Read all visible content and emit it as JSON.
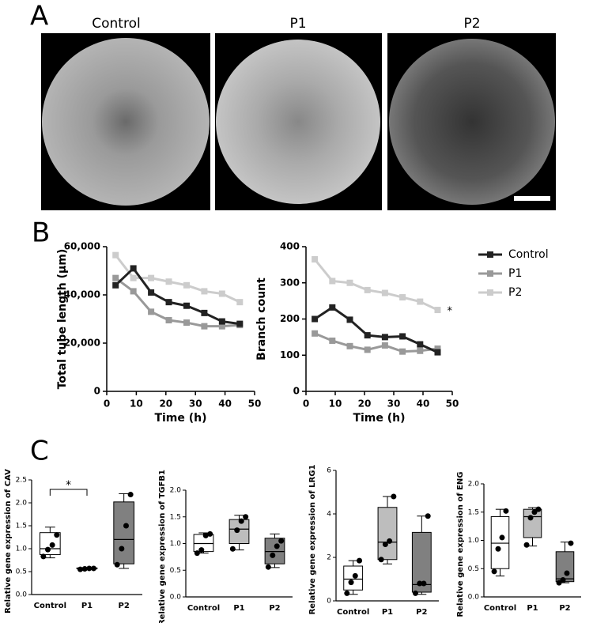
{
  "panel_a": {
    "label": "A",
    "titles": [
      "Control",
      "P1",
      "P2"
    ]
  },
  "panel_b_label": "B",
  "panel_c_label": "C",
  "chart_data": [
    {
      "type": "line",
      "xlabel": "Time (h)",
      "ylabel": "Total tube length (µm)",
      "x": [
        3,
        9,
        15,
        21,
        27,
        33,
        39,
        45
      ],
      "xlim": [
        0,
        50
      ],
      "xticks": [
        0,
        10,
        20,
        30,
        40,
        50
      ],
      "ylim": [
        0,
        60000
      ],
      "yticks": [
        0,
        {
          "value": 20000,
          "label": "20,000"
        },
        {
          "value": 40000,
          "label": "40,000"
        },
        {
          "value": 60000,
          "label": "60,000"
        }
      ],
      "series": [
        {
          "color": "#222222",
          "values": [
            44000,
            51000,
            41000,
            37000,
            35500,
            32500,
            29000,
            28000
          ]
        },
        {
          "color": "#999999",
          "values": [
            47000,
            41500,
            33000,
            29500,
            28500,
            27000,
            27000,
            27500
          ]
        },
        {
          "color": "#cccccc",
          "values": [
            56500,
            47000,
            47000,
            45500,
            44000,
            41500,
            40500,
            37000
          ]
        }
      ]
    },
    {
      "type": "line",
      "xlabel": "Time (h)",
      "ylabel": "Branch count",
      "x": [
        3,
        9,
        15,
        21,
        27,
        33,
        39,
        45
      ],
      "xlim": [
        0,
        50
      ],
      "xticks": [
        0,
        10,
        20,
        30,
        40,
        50
      ],
      "ylim": [
        0,
        400
      ],
      "yticks": [
        0,
        100,
        200,
        300,
        400
      ],
      "annotation": "*",
      "series": [
        {
          "name": "Control",
          "color": "#222222",
          "values": [
            200,
            232,
            198,
            155,
            150,
            152,
            130,
            108
          ]
        },
        {
          "name": "P1",
          "color": "#999999",
          "values": [
            160,
            140,
            125,
            115,
            127,
            110,
            112,
            118
          ]
        },
        {
          "name": "P2",
          "color": "#cccccc",
          "values": [
            365,
            305,
            300,
            280,
            272,
            260,
            248,
            225
          ]
        }
      ]
    },
    {
      "type": "box",
      "ylabel": "Relative gene expression of CAV",
      "categories": [
        "Control",
        "P1",
        "P2"
      ],
      "colors": [
        "#ffffff",
        "#bdbdbd",
        "#808080"
      ],
      "ylim": [
        0,
        2.5
      ],
      "yticks": [
        {
          "value": 0,
          "label": "0.0"
        },
        0.5,
        {
          "value": 1,
          "label": "1.0"
        },
        1.5,
        {
          "value": 2,
          "label": "2.0"
        },
        2.5
      ],
      "annotation": "*",
      "boxes": [
        {
          "min": 0.8,
          "q1": 0.87,
          "median": 1.0,
          "q3": 1.35,
          "max": 1.47,
          "points": [
            0.83,
            0.98,
            1.08,
            1.3
          ]
        },
        {
          "min": 0.55,
          "q1": 0.56,
          "median": 0.57,
          "q3": 0.58,
          "max": 0.58,
          "points": [
            0.55,
            0.56,
            0.57,
            0.57
          ]
        },
        {
          "min": 0.57,
          "q1": 0.67,
          "median": 1.2,
          "q3": 2.02,
          "max": 2.2,
          "points": [
            0.65,
            1.0,
            1.5,
            2.18
          ]
        }
      ]
    },
    {
      "type": "box",
      "ylabel": "Relative gene expression of TGFB1",
      "categories": [
        "Control",
        "P1",
        "P2"
      ],
      "colors": [
        "#ffffff",
        "#bdbdbd",
        "#808080"
      ],
      "ylim": [
        0,
        2
      ],
      "yticks": [
        {
          "value": 0,
          "label": "0.0"
        },
        0.5,
        {
          "value": 1,
          "label": "1.0"
        },
        1.5,
        {
          "value": 2,
          "label": "2.0"
        }
      ],
      "boxes": [
        {
          "min": 0.82,
          "q1": 0.85,
          "median": 1.0,
          "q3": 1.17,
          "max": 1.2,
          "points": [
            0.82,
            0.88,
            1.15,
            1.18
          ]
        },
        {
          "min": 0.88,
          "q1": 1.0,
          "median": 1.27,
          "q3": 1.45,
          "max": 1.53,
          "points": [
            0.9,
            1.25,
            1.42,
            1.5
          ]
        },
        {
          "min": 0.55,
          "q1": 0.62,
          "median": 0.85,
          "q3": 1.1,
          "max": 1.18,
          "points": [
            0.56,
            0.78,
            0.95,
            1.05
          ]
        }
      ]
    },
    {
      "type": "box",
      "ylabel": "Relative gene expression of LRG1",
      "categories": [
        "Control",
        "P1",
        "P2"
      ],
      "colors": [
        "#ffffff",
        "#bdbdbd",
        "#808080"
      ],
      "ylim": [
        0,
        6
      ],
      "yticks": [
        0,
        2,
        4,
        6
      ],
      "boxes": [
        {
          "min": 0.3,
          "q1": 0.5,
          "median": 1.0,
          "q3": 1.6,
          "max": 1.85,
          "points": [
            0.35,
            0.85,
            1.15,
            1.85
          ]
        },
        {
          "min": 1.7,
          "q1": 1.9,
          "median": 2.7,
          "q3": 4.3,
          "max": 4.8,
          "points": [
            1.9,
            2.6,
            2.75,
            4.8
          ]
        },
        {
          "min": 0.3,
          "q1": 0.4,
          "median": 0.75,
          "q3": 3.15,
          "max": 3.9,
          "points": [
            0.35,
            0.8,
            0.8,
            3.9
          ]
        }
      ]
    },
    {
      "type": "box",
      "ylabel": "Relative gene expression of ENG",
      "categories": [
        "Control",
        "P1",
        "P2"
      ],
      "colors": [
        "#ffffff",
        "#bdbdbd",
        "#808080"
      ],
      "ylim": [
        0,
        2
      ],
      "yticks": [
        {
          "value": 0,
          "label": "0.0"
        },
        0.5,
        {
          "value": 1,
          "label": "1.0"
        },
        1.5,
        {
          "value": 2,
          "label": "2.0"
        }
      ],
      "boxes": [
        {
          "min": 0.37,
          "q1": 0.5,
          "median": 0.95,
          "q3": 1.42,
          "max": 1.55,
          "points": [
            0.45,
            0.85,
            1.05,
            1.52
          ]
        },
        {
          "min": 0.9,
          "q1": 1.05,
          "median": 1.42,
          "q3": 1.55,
          "max": 1.58,
          "points": [
            0.92,
            1.4,
            1.5,
            1.55
          ]
        },
        {
          "min": 0.25,
          "q1": 0.27,
          "median": 0.32,
          "q3": 0.8,
          "max": 0.97,
          "points": [
            0.25,
            0.3,
            0.42,
            0.95
          ]
        }
      ]
    }
  ]
}
